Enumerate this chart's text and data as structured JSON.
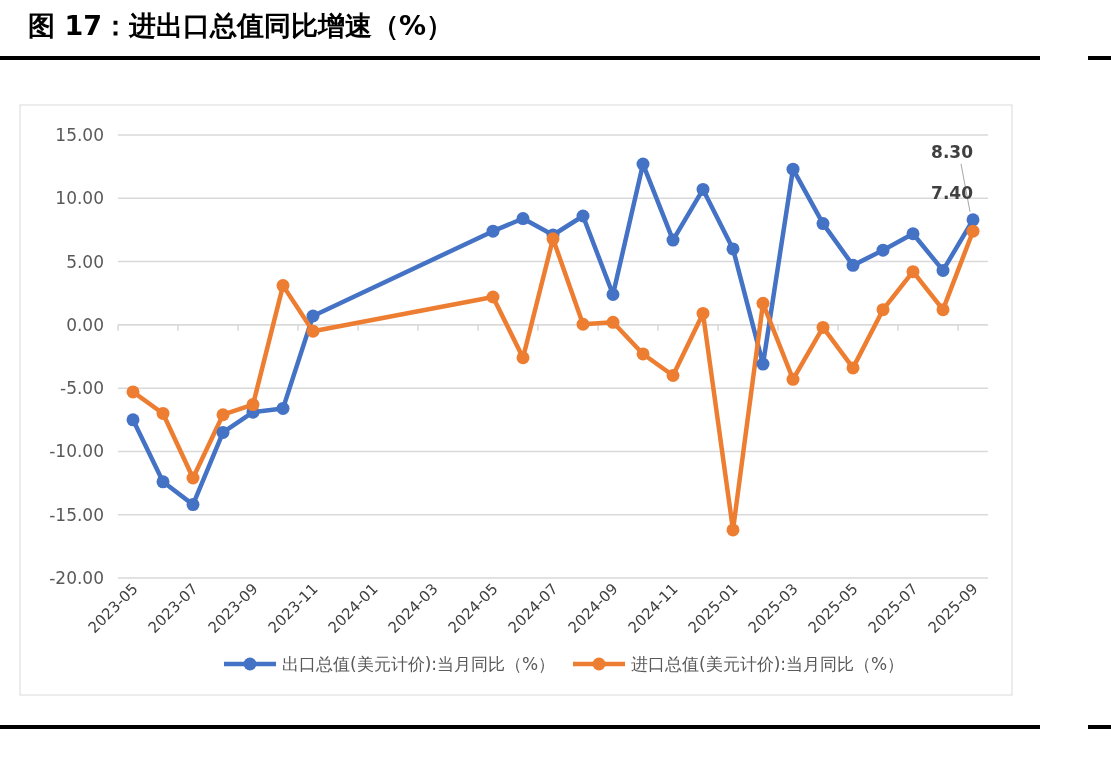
{
  "chart_data": {
    "type": "line",
    "title": "图 17：进出口总值同比增速（%）",
    "categories": [
      "2023-05",
      null,
      "2023-07",
      null,
      "2023-09",
      null,
      "2023-11",
      null,
      "2024-01",
      null,
      "2024-03",
      null,
      "2024-05",
      null,
      "2024-07",
      null,
      "2024-09",
      null,
      "2024-11",
      null,
      "2025-01",
      null,
      "2025-03",
      null,
      "2025-05",
      null,
      "2025-07",
      null,
      "2025-09"
    ],
    "series": [
      {
        "name": "出口总值(美元计价):当月同比（%）",
        "color": "#4472c4",
        "values": [
          -7.5,
          -12.4,
          -14.2,
          -8.5,
          -6.9,
          -6.6,
          0.7,
          null,
          null,
          null,
          null,
          null,
          7.4,
          8.4,
          7.1,
          8.6,
          2.4,
          12.7,
          6.7,
          10.7,
          6.0,
          -3.1,
          12.3,
          8.0,
          4.7,
          5.9,
          7.2,
          4.3,
          8.3
        ],
        "value_labels": [
          null,
          null,
          null,
          null,
          null,
          null,
          null,
          null,
          null,
          null,
          null,
          null,
          null,
          null,
          null,
          null,
          null,
          null,
          null,
          null,
          null,
          null,
          null,
          null,
          null,
          null,
          null,
          null,
          "8.30"
        ]
      },
      {
        "name": "进口总值(美元计价):当月同比（%）",
        "color": "#ed7d31",
        "values": [
          -5.3,
          -7.0,
          -12.1,
          -7.1,
          -6.3,
          3.1,
          -0.5,
          null,
          null,
          null,
          null,
          null,
          2.2,
          -2.6,
          6.8,
          0.05,
          0.2,
          -2.3,
          -4.0,
          0.9,
          -16.2,
          1.7,
          -4.3,
          -0.2,
          -3.4,
          1.2,
          4.2,
          1.2,
          7.4
        ],
        "value_labels": [
          null,
          null,
          null,
          null,
          null,
          null,
          null,
          null,
          null,
          null,
          null,
          null,
          null,
          null,
          null,
          null,
          null,
          null,
          null,
          null,
          null,
          null,
          null,
          null,
          null,
          null,
          null,
          null,
          "7.40"
        ]
      }
    ],
    "ylim": [
      -20,
      15
    ],
    "yticks": [
      {
        "value": -20,
        "label": "-20.00"
      },
      {
        "value": -15,
        "label": "-15.00"
      },
      {
        "value": -10,
        "label": "-10.00"
      },
      {
        "value": -5,
        "label": "-5.00"
      },
      {
        "value": 0,
        "label": "0.00"
      },
      {
        "value": 5,
        "label": "5.00"
      },
      {
        "value": 10,
        "label": "10.00"
      },
      {
        "value": 15,
        "label": "15.00"
      }
    ],
    "grid": "y",
    "legend": "bottom",
    "marker": "circle",
    "line_style": "solid"
  }
}
